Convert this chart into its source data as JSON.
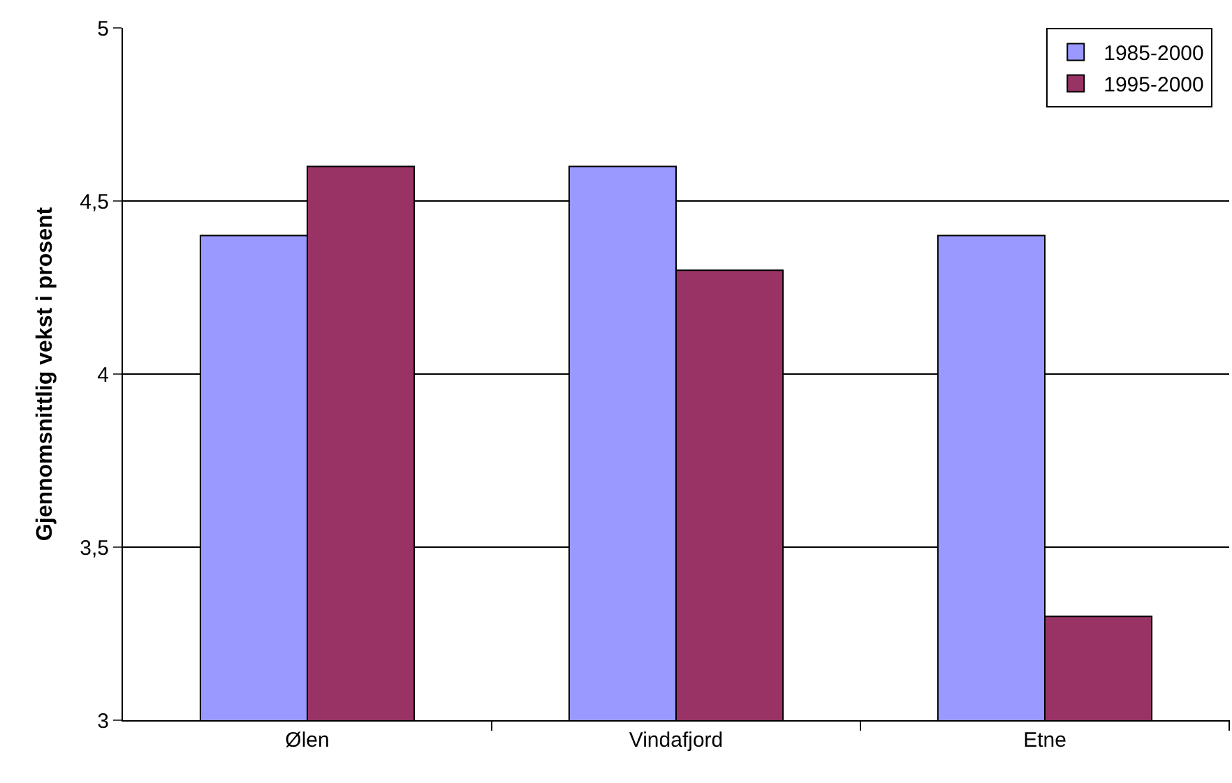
{
  "chart_data": {
    "type": "bar",
    "ylabel": "Gjennomsnittlig vekst i prosent",
    "categories": [
      "Ølen",
      "Vindafjord",
      "Etne"
    ],
    "series": [
      {
        "name": "1985-2000",
        "color": "#9999ff",
        "values": [
          4.4,
          4.6,
          4.4
        ]
      },
      {
        "name": "1995-2000",
        "color": "#993366",
        "values": [
          4.6,
          4.3,
          3.3
        ]
      }
    ],
    "ylim": [
      3,
      5
    ],
    "yticks": [
      3,
      {
        "value": 3.5,
        "label": "3,5"
      },
      4,
      {
        "value": 4.5,
        "label": "4,5"
      },
      5
    ],
    "grid": "y",
    "legend": "top right"
  }
}
